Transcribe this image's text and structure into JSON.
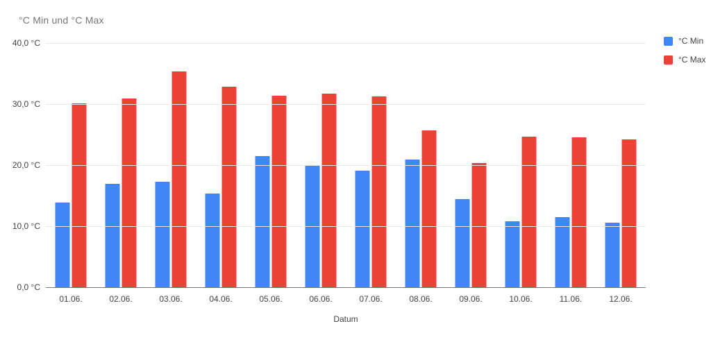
{
  "chart_title": "°C Min und °C Max",
  "colors": {
    "min_series": "#4285f4",
    "max_series": "#ea4335",
    "gridline": "#e6e6e6",
    "baseline": "#757575",
    "title_text": "#757575",
    "tick_text": "#424242"
  },
  "chart_data": {
    "type": "bar",
    "title": "°C Min und °C Max",
    "xlabel": "Datum",
    "ylabel": "",
    "ylim": [
      0,
      40
    ],
    "grid": true,
    "legend_position": "right-top",
    "categories": [
      "01.06.",
      "02.06.",
      "03.06.",
      "04.06.",
      "05.06.",
      "06.06.",
      "07.06.",
      "08.06.",
      "09.06.",
      "10.06.",
      "11.06.",
      "12.06."
    ],
    "series": [
      {
        "name": "°C Min",
        "color": "#4285f4",
        "values": [
          14.0,
          17.1,
          17.4,
          15.4,
          21.6,
          20.0,
          19.2,
          21.0,
          14.5,
          10.9,
          11.6,
          10.7
        ]
      },
      {
        "name": "°C Max",
        "color": "#ea4335",
        "values": [
          30.2,
          31.0,
          35.5,
          33.0,
          31.5,
          31.8,
          31.4,
          25.8,
          20.5,
          24.8,
          24.7,
          24.3
        ]
      }
    ],
    "yticks": [
      {
        "value": 0,
        "label": "0,0 °C"
      },
      {
        "value": 10,
        "label": "10,0 °C"
      },
      {
        "value": 20,
        "label": "20,0 °C"
      },
      {
        "value": 30,
        "label": "30,0 °C"
      },
      {
        "value": 40,
        "label": "40,0 °C"
      }
    ]
  }
}
